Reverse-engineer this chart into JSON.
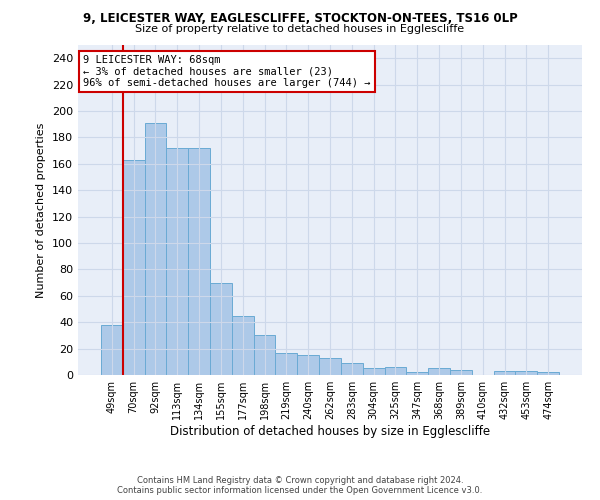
{
  "title1": "9, LEICESTER WAY, EAGLESCLIFFE, STOCKTON-ON-TEES, TS16 0LP",
  "title2": "Size of property relative to detached houses in Egglescliffe",
  "xlabel": "Distribution of detached houses by size in Egglescliffe",
  "ylabel": "Number of detached properties",
  "categories": [
    "49sqm",
    "70sqm",
    "92sqm",
    "113sqm",
    "134sqm",
    "155sqm",
    "177sqm",
    "198sqm",
    "219sqm",
    "240sqm",
    "262sqm",
    "283sqm",
    "304sqm",
    "325sqm",
    "347sqm",
    "368sqm",
    "389sqm",
    "410sqm",
    "432sqm",
    "453sqm",
    "474sqm"
  ],
  "values": [
    38,
    163,
    191,
    172,
    172,
    70,
    45,
    30,
    17,
    15,
    13,
    9,
    5,
    6,
    2,
    5,
    4,
    0,
    3,
    3,
    2
  ],
  "bar_color": "#adc9e8",
  "bar_edge_color": "#6aaad4",
  "annotation_text": "9 LEICESTER WAY: 68sqm\n← 3% of detached houses are smaller (23)\n96% of semi-detached houses are larger (744) →",
  "annotation_box_color": "#ffffff",
  "annotation_box_edge": "#cc0000",
  "vline_color": "#cc0000",
  "ylim": [
    0,
    250
  ],
  "yticks": [
    0,
    20,
    40,
    60,
    80,
    100,
    120,
    140,
    160,
    180,
    200,
    220,
    240
  ],
  "grid_color": "#cdd8ea",
  "background_color": "#e8eef8",
  "footer1": "Contains HM Land Registry data © Crown copyright and database right 2024.",
  "footer2": "Contains public sector information licensed under the Open Government Licence v3.0."
}
